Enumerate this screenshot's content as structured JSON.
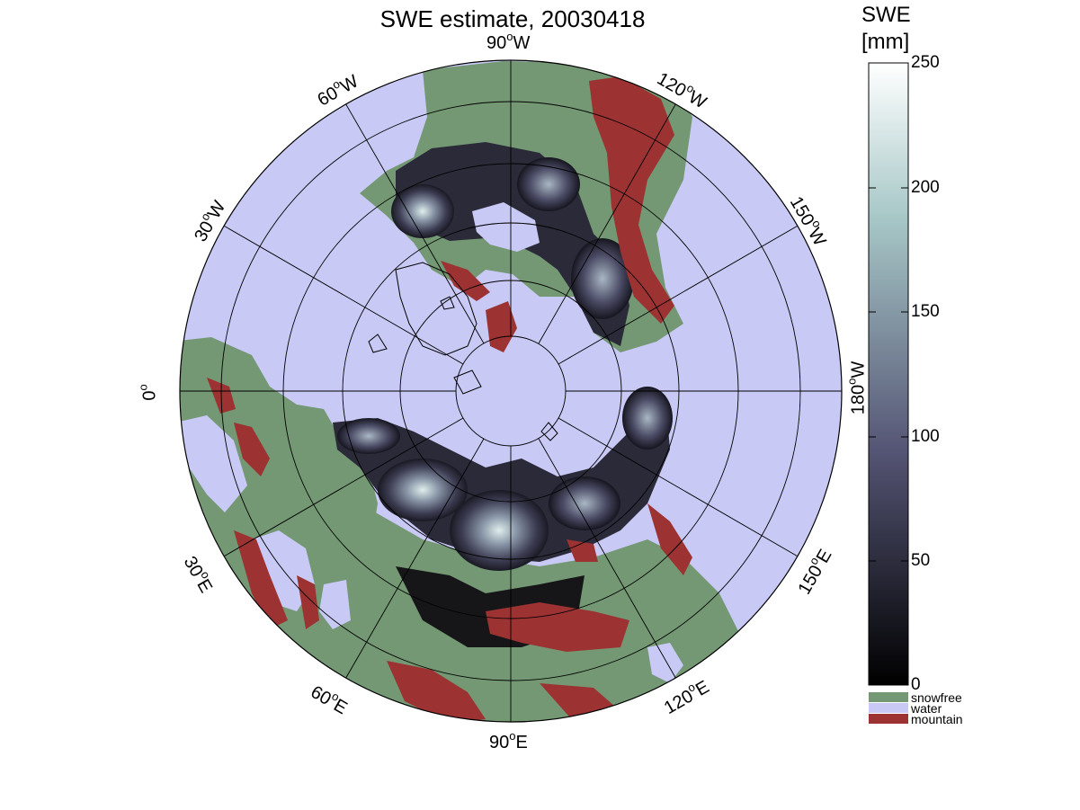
{
  "title": "SWE estimate, 20030418",
  "colorbar": {
    "title_line1": "SWE",
    "title_line2": "[mm]",
    "ticks": [
      "250",
      "200",
      "150",
      "100",
      "50",
      "0"
    ],
    "range": [
      0,
      250
    ]
  },
  "legend": [
    {
      "label": "snowfree",
      "color": "#739873"
    },
    {
      "label": "water",
      "color": "#c9c9f6"
    },
    {
      "label": "mountain",
      "color": "#9c3232"
    }
  ],
  "longitude_labels": {
    "w90": {
      "num": "90",
      "suffix": "W"
    },
    "w120": {
      "num": "120",
      "suffix": "W"
    },
    "w60": {
      "num": "60",
      "suffix": "W"
    },
    "w150": {
      "num": "150",
      "suffix": "W"
    },
    "w30": {
      "num": "30",
      "suffix": "W"
    },
    "deg0": {
      "num": "0",
      "suffix": ""
    },
    "w180": {
      "num": "180",
      "suffix": "W"
    },
    "e30": {
      "num": "30",
      "suffix": "E"
    },
    "e150": {
      "num": "150",
      "suffix": "E"
    },
    "e60": {
      "num": "60",
      "suffix": "E"
    },
    "e120": {
      "num": "120",
      "suffix": "E"
    },
    "e90": {
      "num": "90",
      "suffix": "E"
    }
  },
  "map": {
    "projection": "polar stereographic, north pole centered",
    "ocean_color": "#c9c9f6",
    "land_snowfree_color": "#739873",
    "mountain_color": "#9c3232",
    "swe_colormap": "bone"
  }
}
